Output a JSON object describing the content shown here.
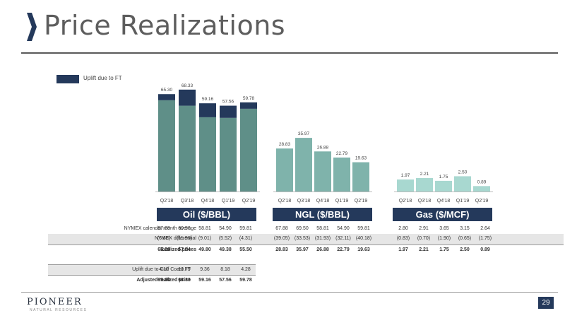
{
  "title": "Price Realizations",
  "legend_label": "Uplift due to FT",
  "colors": {
    "dark": "#24395b",
    "teal": "#5f8f88",
    "light_teal": "#7fb3ab",
    "gas": "#a8d8d0",
    "divider": "#5a5a5a"
  },
  "page_number": "29",
  "logo": {
    "name": "PIONEER",
    "sub": "NATURAL RESOURCES"
  },
  "chart_data": [
    {
      "type": "bar",
      "name": "Oil ($/BBL)",
      "categories": [
        "Q2'18",
        "Q3'18",
        "Q4'18",
        "Q1'19",
        "Q2'19"
      ],
      "series": [
        {
          "name": "Realized prices",
          "values": [
            61.2,
            57.54,
            49.8,
            49.38,
            55.5
          ]
        },
        {
          "name": "Uplift due to FT",
          "values": [
            4.1,
            10.79,
            9.36,
            8.18,
            4.28
          ]
        }
      ],
      "total_labels": [
        "65.30",
        "68.33",
        "59.16",
        "57.56",
        "59.78"
      ],
      "ylim": [
        0,
        70
      ]
    },
    {
      "type": "bar",
      "name": "NGL ($/BBL)",
      "categories": [
        "Q2'18",
        "Q3'18",
        "Q4'18",
        "Q1'19",
        "Q2'19"
      ],
      "values": [
        28.83,
        35.97,
        26.88,
        22.79,
        19.63
      ],
      "value_labels": [
        "28.83",
        "35.97",
        "26.88",
        "22.79",
        "19.63"
      ],
      "ylim": [
        0,
        70
      ]
    },
    {
      "type": "bar",
      "name": "Gas ($/MCF)",
      "categories": [
        "Q2'18",
        "Q3'18",
        "Q4'18",
        "Q1'19",
        "Q2'19"
      ],
      "values": [
        1.97,
        2.21,
        1.75,
        2.5,
        0.89
      ],
      "value_labels": [
        "1.97",
        "2.21",
        "1.75",
        "2.50",
        "0.89"
      ],
      "ylim": [
        0,
        8.5
      ]
    }
  ],
  "segment_headers": [
    "Oil ($/BBL)",
    "NGL ($/BBL)",
    "Gas ($/MCF)"
  ],
  "table": {
    "rows": [
      {
        "label": "NYMEX calendar month average",
        "oil": [
          "67.88",
          "69.50",
          "58.81",
          "54.90",
          "59.81"
        ],
        "ngl": [
          "67.88",
          "69.50",
          "58.81",
          "54.90",
          "59.81"
        ],
        "gas": [
          "2.80",
          "2.91",
          "3.65",
          "3.15",
          "2.64"
        ]
      },
      {
        "label": "NYMEX differential",
        "oil": [
          "(6.68)",
          "(11.96)",
          "(9.01)",
          "(5.52)",
          "(4.31)"
        ],
        "ngl": [
          "(39.05)",
          "(33.53)",
          "(31.93)",
          "(32.11)",
          "(40.18)"
        ],
        "gas": [
          "(0.83)",
          "(0.70)",
          "(1.90)",
          "(0.65)",
          "(1.75)"
        ]
      },
      {
        "label": "Realized prices",
        "oil": [
          "61.20",
          "57.54",
          "49.80",
          "49.38",
          "55.50"
        ],
        "ngl": [
          "28.83",
          "35.97",
          "26.88",
          "22.79",
          "19.63"
        ],
        "gas": [
          "1.97",
          "2.21",
          "1.75",
          "2.50",
          "0.89"
        ]
      }
    ],
    "extra_rows": [
      {
        "label": "Uplift due to Gulf Coast FT",
        "oil": [
          "4.10",
          "10.79",
          "9.36",
          "8.18",
          "4.28"
        ]
      },
      {
        "label": "Adjusted realized price",
        "oil": [
          "65.30",
          "68.33",
          "59.16",
          "57.56",
          "59.78"
        ]
      }
    ]
  }
}
